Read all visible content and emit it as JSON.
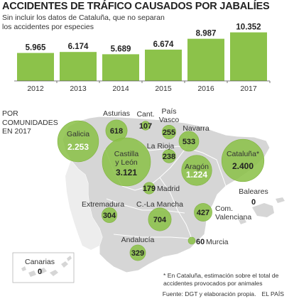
{
  "title": "ACCIDENTES DE TRÁFICO CAUSADOS POR JABALÍES",
  "subtitle": "Sin incluir los datos de Cataluña, que no separan los accidentes por especies",
  "chart_data": [
    {
      "type": "bar",
      "categories": [
        "2012",
        "2013",
        "2014",
        "2015",
        "2016",
        "2017"
      ],
      "values": [
        5965,
        6174,
        5689,
        6674,
        8987,
        10352
      ],
      "value_labels": [
        "5.965",
        "6.174",
        "5.689",
        "6.674",
        "8.987",
        "10.352"
      ],
      "color": "#8cc24a",
      "ylim": [
        0,
        11500
      ],
      "grid": false
    },
    {
      "type": "bubble-map",
      "label": "POR COMUNIDADES EN 2017",
      "regions": [
        {
          "name": "Galicia",
          "value": 2253,
          "value_label": "2.253"
        },
        {
          "name": "Asturias",
          "value": 618,
          "value_label": "618"
        },
        {
          "name": "Cant.",
          "value": 107,
          "value_label": "107"
        },
        {
          "name": "País Vasco",
          "value": 255,
          "value_label": "255"
        },
        {
          "name": "Navarra",
          "value": 533,
          "value_label": "533"
        },
        {
          "name": "La Rioja",
          "value": 238,
          "value_label": "238"
        },
        {
          "name": "Castilla y León",
          "value": 3121,
          "value_label": "3.121"
        },
        {
          "name": "Aragón",
          "value": 1224,
          "value_label": "1.224"
        },
        {
          "name": "Cataluña*",
          "value": 2400,
          "value_label": "2.400"
        },
        {
          "name": "Madrid",
          "value": 179,
          "value_label": "179"
        },
        {
          "name": "Baleares",
          "value": 0,
          "value_label": "0"
        },
        {
          "name": "Extremadura",
          "value": 304,
          "value_label": "304"
        },
        {
          "name": "C.-La Mancha",
          "value": 704,
          "value_label": "704"
        },
        {
          "name": "Com. Valenciana",
          "value": 427,
          "value_label": "427"
        },
        {
          "name": "Murcia",
          "value": 60,
          "value_label": "60"
        },
        {
          "name": "Andalucía",
          "value": 329,
          "value_label": "329"
        },
        {
          "name": "Canarias",
          "value": 0,
          "value_label": "0"
        }
      ]
    }
  ],
  "footnote": "* En Cataluña, estimación sobre el total de accidentes provocados por animales",
  "source": "Fuente: DGT y elaboración propia.",
  "credit": "EL PAÍS",
  "colors": {
    "bubble": "#8cc24a",
    "map": "#d6d6d6",
    "accent": "#8cc24a"
  }
}
